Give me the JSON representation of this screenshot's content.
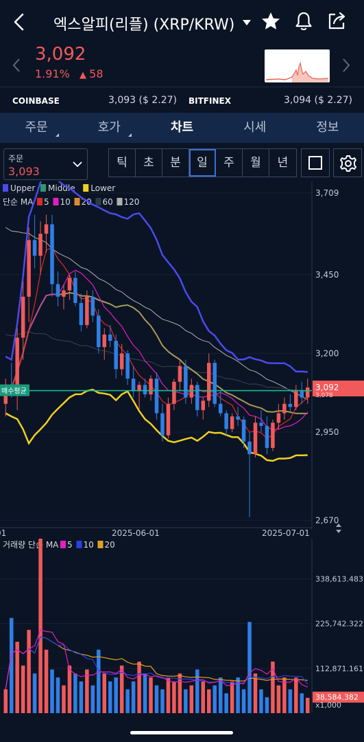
{
  "header": {
    "title": "엑스알피(리플) (XRP/KRW)"
  },
  "ticker": {
    "price": "3,092",
    "change_pct": "1.91%",
    "change_abs": "58",
    "up_color": "#f15a5a",
    "down_color": "#2f7fe6"
  },
  "exchanges": [
    {
      "name": "COINBASE",
      "price": "3,093 ($ 2.27)"
    },
    {
      "name": "BITFINEX",
      "price": "3,094 ($ 2.27)"
    }
  ],
  "tabs": [
    {
      "label": "주문",
      "active": false
    },
    {
      "label": "호가",
      "active": false
    },
    {
      "label": "차트",
      "active": true
    },
    {
      "label": "시세",
      "active": false
    },
    {
      "label": "정보",
      "active": false
    }
  ],
  "order_select": {
    "label": "주문",
    "value": "3,093"
  },
  "intervals": [
    {
      "label": "틱",
      "active": false
    },
    {
      "label": "초",
      "active": false
    },
    {
      "label": "분",
      "active": false
    },
    {
      "label": "일",
      "active": true
    },
    {
      "label": "주",
      "active": false
    },
    {
      "label": "월",
      "active": false
    },
    {
      "label": "년",
      "active": false
    }
  ],
  "icons": {
    "back": "chevron-left-icon",
    "dropdown": "caret-down-icon",
    "favorite": "star-icon",
    "alert": "bell-icon",
    "share": "share-icon",
    "settings": "gear-icon",
    "draw": "square-icon"
  },
  "legend": {
    "bollinger": [
      {
        "name": "Upper",
        "color": "#4a4af0"
      },
      {
        "name": "Middle",
        "color": "#2e9a6a"
      },
      {
        "name": "Lower",
        "color": "#f0d020"
      }
    ],
    "ma_label": "단순 MA",
    "ma": [
      {
        "name": "5",
        "color": "#e02828"
      },
      {
        "name": "10",
        "color": "#e020c0"
      },
      {
        "name": "20",
        "color": "#e08a30"
      },
      {
        "name": "60",
        "color": "#303848"
      },
      {
        "name": "120",
        "color": "#b0b0b0"
      }
    ],
    "volume_label": "거래량 단순 MA",
    "volume_ma": [
      {
        "name": "5",
        "color": "#e020c0"
      },
      {
        "name": "10",
        "color": "#2a40e0"
      },
      {
        "name": "20",
        "color": "#e0a020"
      }
    ]
  },
  "chart_data": {
    "type": "candlestick",
    "y_ticks": [
      3709,
      3450,
      3200,
      2950,
      2670
    ],
    "y_tick_labels": [
      "3,709",
      "3,450",
      "3,200",
      "2,950",
      "2,670"
    ],
    "ylim": [
      2660,
      3720
    ],
    "x_ticks": [
      "01",
      "2025-06-01",
      "2025-07-01"
    ],
    "current_price": 3092,
    "current_price_label": "3,092",
    "avg_buy_label": "매수평균",
    "avg_buy_price": 3082,
    "hidden_label": "3,078",
    "candles": [
      [
        3040,
        3120,
        3000,
        3100
      ],
      [
        3100,
        3170,
        3060,
        3080
      ],
      [
        3080,
        3280,
        3020,
        3250
      ],
      [
        3250,
        3430,
        3180,
        3380
      ],
      [
        3380,
        3600,
        3300,
        3560
      ],
      [
        3560,
        3640,
        3470,
        3510
      ],
      [
        3510,
        3620,
        3450,
        3580
      ],
      [
        3580,
        3640,
        3520,
        3610
      ],
      [
        3610,
        3640,
        3380,
        3420
      ],
      [
        3420,
        3460,
        3350,
        3380
      ],
      [
        3380,
        3420,
        3340,
        3400
      ],
      [
        3400,
        3450,
        3370,
        3440
      ],
      [
        3440,
        3460,
        3350,
        3360
      ],
      [
        3360,
        3390,
        3270,
        3290
      ],
      [
        3290,
        3400,
        3280,
        3380
      ],
      [
        3380,
        3400,
        3300,
        3320
      ],
      [
        3320,
        3340,
        3200,
        3220
      ],
      [
        3220,
        3280,
        3180,
        3260
      ],
      [
        3260,
        3290,
        3220,
        3240
      ],
      [
        3240,
        3260,
        3120,
        3150
      ],
      [
        3150,
        3230,
        3130,
        3200
      ],
      [
        3200,
        3210,
        3100,
        3120
      ],
      [
        3120,
        3160,
        3060,
        3080
      ],
      [
        3080,
        3110,
        3020,
        3100
      ],
      [
        3100,
        3120,
        3060,
        3070
      ],
      [
        3070,
        3130,
        3050,
        3120
      ],
      [
        3120,
        3140,
        2990,
        3010
      ],
      [
        3010,
        3040,
        2920,
        2940
      ],
      [
        2940,
        3060,
        2930,
        3040
      ],
      [
        3040,
        3120,
        3020,
        3110
      ],
      [
        3110,
        3180,
        3080,
        3160
      ],
      [
        3160,
        3180,
        3040,
        3060
      ],
      [
        3060,
        3120,
        3040,
        3100
      ],
      [
        3100,
        3110,
        3000,
        3020
      ],
      [
        3020,
        3060,
        2990,
        3050
      ],
      [
        3050,
        3200,
        3030,
        3170
      ],
      [
        3170,
        3180,
        3030,
        3040
      ],
      [
        3040,
        3080,
        3000,
        3010
      ],
      [
        3010,
        3020,
        2940,
        2960
      ],
      [
        2960,
        3010,
        2950,
        3000
      ],
      [
        3000,
        3030,
        2970,
        2990
      ],
      [
        2990,
        3000,
        2900,
        2920
      ],
      [
        2920,
        2950,
        2680,
        2880
      ],
      [
        2880,
        3000,
        2870,
        2980
      ],
      [
        2980,
        3020,
        2950,
        2970
      ],
      [
        2970,
        3000,
        2880,
        2900
      ],
      [
        2900,
        2990,
        2890,
        2980
      ],
      [
        2980,
        3040,
        2960,
        3010
      ],
      [
        3010,
        3060,
        2990,
        3040
      ],
      [
        3040,
        3070,
        3010,
        3030
      ],
      [
        3030,
        3100,
        3020,
        3080
      ],
      [
        3080,
        3110,
        3040,
        3060
      ],
      [
        3060,
        3120,
        3040,
        3092
      ]
    ],
    "volume": {
      "y_tick_labels": [
        "338,613.483",
        "225,742.322",
        "112,871.161"
      ],
      "y_ticks": [
        338613.483,
        225742.322,
        112871.161
      ],
      "current_label": "38,584.382",
      "unit_label": "x1,000",
      "ylim": [
        0,
        440000
      ],
      "values": [
        60000,
        240000,
        180000,
        120000,
        210000,
        100000,
        440000,
        160000,
        110000,
        90000,
        70000,
        120000,
        100000,
        80000,
        110000,
        70000,
        160000,
        100000,
        80000,
        90000,
        120000,
        60000,
        80000,
        130000,
        100000,
        90000,
        70000,
        60000,
        90000,
        80000,
        100000,
        60000,
        70000,
        110000,
        80000,
        60000,
        70000,
        90000,
        50000,
        80000,
        90000,
        60000,
        230000,
        100000,
        60000,
        40000,
        130000,
        70000,
        90000,
        60000,
        90000,
        50000,
        38584
      ]
    }
  }
}
